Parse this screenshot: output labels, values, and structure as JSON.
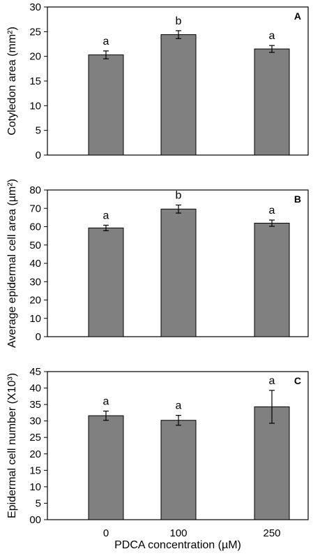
{
  "chart_data": [
    {
      "type": "bar",
      "panel_label": "A",
      "ylabel": "Cotyledon area (mm²)",
      "ylim": [
        0,
        30
      ],
      "yticks": [
        "0",
        "5",
        "10",
        "15",
        "20",
        "25",
        "30"
      ],
      "categories": [
        "0",
        "100",
        "250"
      ],
      "values": [
        20.3,
        24.4,
        21.5
      ],
      "errors": [
        0.8,
        0.8,
        0.7
      ],
      "significance": [
        "a",
        "b",
        "a"
      ],
      "bar_color": "#808080",
      "grid": false
    },
    {
      "type": "bar",
      "panel_label": "B",
      "ylabel": "Average epidermal cell area (µm²)",
      "ylim": [
        0,
        80
      ],
      "yticks": [
        "0",
        "10",
        "20",
        "30",
        "40",
        "50",
        "60",
        "70",
        "80"
      ],
      "categories": [
        "0",
        "100",
        "250"
      ],
      "values": [
        59.3,
        69.6,
        61.9
      ],
      "errors": [
        1.5,
        2.2,
        1.7
      ],
      "significance": [
        "a",
        "b",
        "a"
      ],
      "bar_color": "#808080",
      "grid": false
    },
    {
      "type": "bar",
      "panel_label": "C",
      "ylabel": "Epidermal cell number (X10³)",
      "ylim": [
        0,
        45
      ],
      "yticks": [
        "00",
        "5",
        "10",
        "15",
        "20",
        "25",
        "30",
        "35",
        "40",
        "45"
      ],
      "categories": [
        "0",
        "100",
        "250"
      ],
      "values": [
        31.6,
        30.2,
        34.3
      ],
      "errors": [
        1.4,
        1.5,
        5.0
      ],
      "significance": [
        "a",
        "a",
        "a"
      ],
      "bar_color": "#808080",
      "grid": false
    }
  ],
  "xlabel": "PDCA concentration (µM)"
}
